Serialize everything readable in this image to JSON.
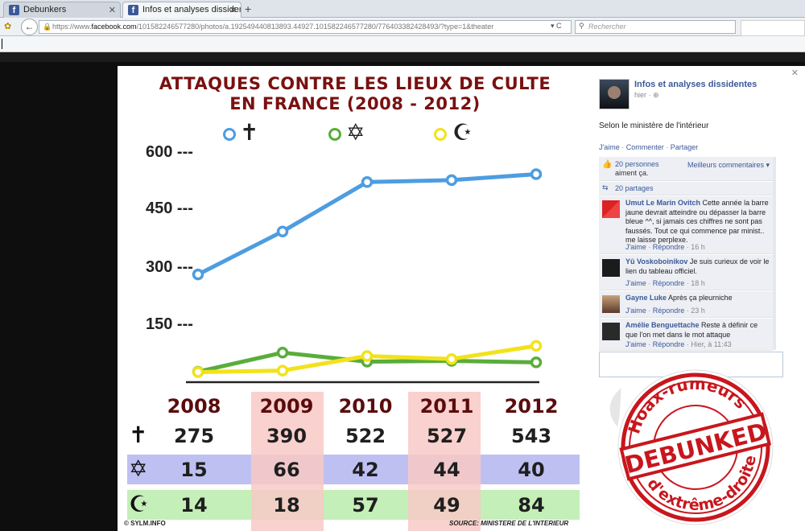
{
  "browser": {
    "tabs": [
      {
        "label": "Debunkers",
        "active": false
      },
      {
        "label": "Infos et analyses dissidentes",
        "active": true
      }
    ],
    "new_tab": "+",
    "url_prefix": "https://www.",
    "url_domain": "facebook.com",
    "url_rest": "/10158224657728­0/photos/a.192549440813893.44927.101582246577280/776403382428493/?type=1&theater",
    "search_placeholder": "Rechercher"
  },
  "infographic": {
    "title_line1": "ATTAQUES CONTRE LES LIEUX DE CULTE",
    "title_line2": "EN FRANCE (2008 - 2012)",
    "credit_left": "© SYLM.INFO",
    "credit_right": "SOURCE: MINISTERE DE L'INTERIEUR",
    "symbols": {
      "christian": "✝",
      "jewish": "✡",
      "muslim": "☪"
    }
  },
  "chart_data": {
    "type": "line",
    "title": "ATTAQUES CONTRE LES LIEUX DE CULTE EN FRANCE (2008 - 2012)",
    "x": [
      "2008",
      "2009",
      "2010",
      "2011",
      "2012"
    ],
    "yticks": [
      "600 ---",
      "450 ---",
      "300 ---",
      "150 ---"
    ],
    "ytick_values": [
      600,
      450,
      300,
      150
    ],
    "ylim": [
      0,
      600
    ],
    "grid": false,
    "legend_position": "top",
    "series": [
      {
        "symbol": "✝",
        "color": "#4d9de0",
        "values": [
          275,
          390,
          522,
          527,
          543
        ]
      },
      {
        "symbol": "✡",
        "color": "#5aad3c",
        "values": [
          15,
          66,
          42,
          44,
          40
        ]
      },
      {
        "symbol": "☪",
        "color": "#f2e21c",
        "values": [
          14,
          18,
          57,
          49,
          84
        ]
      }
    ],
    "row_colors": [
      "#ffffff",
      "#bfc0f2",
      "#c4efb8"
    ]
  },
  "facebook": {
    "page_name": "Infos et analyses dissidentes",
    "post_time": "hier · ⊕",
    "post_text": "Selon le ministère de l'intérieur",
    "actions": [
      "J'aime",
      "Commenter",
      "Partager"
    ],
    "likes_count": "20 personnes",
    "likes_suffix": "aiment ça.",
    "best_comments": "Meilleurs commentaires ▾",
    "shares": "20 partages",
    "comments": [
      {
        "author": "Umut Le Marin Ovitch",
        "text": "Cette année la barre jaune devrait atteindre ou dépasser la barre bleue ^^, si jamais ces chiffres ne sont pas faussés. Tout ce qui commence par minist.. me laisse perplexe.",
        "like": "J'aime",
        "reply": "Répondre",
        "time": "16 h"
      },
      {
        "author": "Yû Voskoboinikov",
        "text": "Je suis curieux de voir le lien du tableau officiel.",
        "like": "J'aime",
        "reply": "Répondre",
        "time": "18 h"
      },
      {
        "author": "Gayne Luke",
        "text": "Après ça pleurniche",
        "like": "J'aime",
        "reply": "Répondre",
        "time": "23 h"
      },
      {
        "author": "Amélie Benguettache",
        "text": "Reste à définir ce que l'on met dans le mot attaque",
        "like": "J'aime",
        "reply": "Répondre",
        "time": "Hier, à 11:43"
      }
    ]
  },
  "stamp": {
    "top_text": "Hoax-rumeurs",
    "main_text": "DEBUNKED",
    "bottom_text": "d'extrême-droite",
    "color": "#c8161d"
  }
}
